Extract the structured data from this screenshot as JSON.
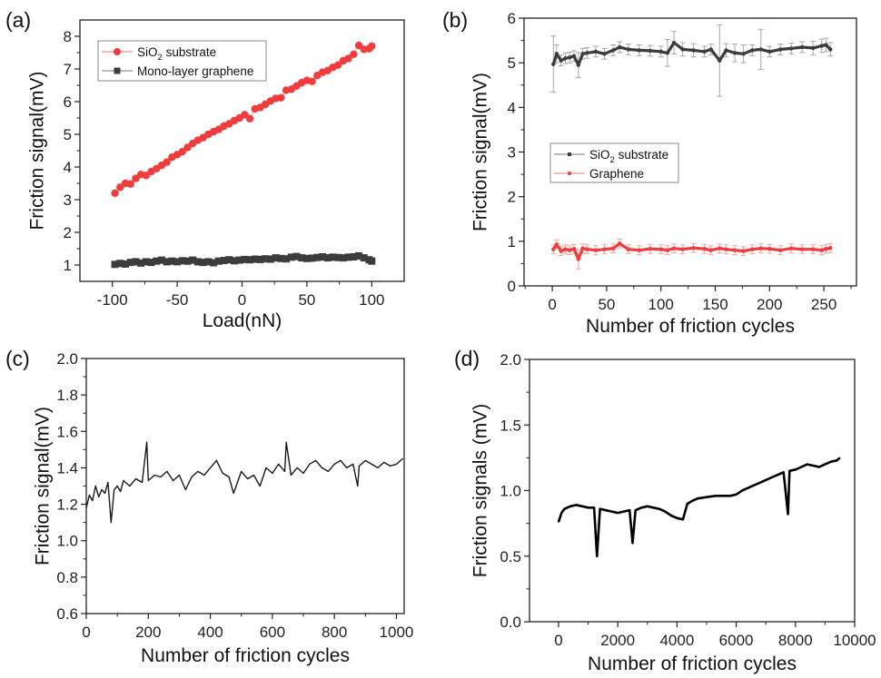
{
  "chart_data": [
    {
      "id": "a",
      "type": "scatter",
      "panel_label": "(a)",
      "title": "",
      "xlabel": "Load(nN)",
      "ylabel": "Friction signal(mV)",
      "xlim": [
        -125,
        125
      ],
      "ylim": [
        0.5,
        8.5
      ],
      "xticks": [
        -100,
        -50,
        0,
        50,
        100
      ],
      "xtick_labels": [
        "-100",
        "-50",
        "0",
        "50",
        "100"
      ],
      "yticks": [
        1,
        2,
        3,
        4,
        5,
        6,
        7,
        8
      ],
      "ytick_labels": [
        "1",
        "2",
        "3",
        "4",
        "5",
        "6",
        "7",
        "8"
      ],
      "grid": false,
      "legend": {
        "placement": "top-left",
        "entries": [
          {
            "label": "SiO",
            "sub": "2",
            "label_rest": " substrate",
            "marker": "circle",
            "color": "#f03c3c"
          },
          {
            "label": "Mono-layer graphene",
            "sub": "",
            "label_rest": "",
            "marker": "square",
            "color": "#3c3c3c"
          }
        ]
      },
      "series": [
        {
          "name": "SiO2 substrate",
          "marker": "circle",
          "color": "#f03c3c",
          "x": [
            -98,
            -94,
            -90,
            -86,
            -82,
            -78,
            -74,
            -70,
            -66,
            -62,
            -58,
            -54,
            -50,
            -46,
            -42,
            -38,
            -34,
            -30,
            -26,
            -22,
            -18,
            -14,
            -10,
            -6,
            -2,
            2,
            6,
            10,
            14,
            18,
            22,
            26,
            30,
            34,
            38,
            42,
            46,
            50,
            54,
            58,
            62,
            66,
            70,
            74,
            78,
            82,
            86,
            90,
            94,
            98,
            100
          ],
          "y": [
            3.2,
            3.38,
            3.5,
            3.48,
            3.65,
            3.77,
            3.74,
            3.86,
            3.95,
            4.05,
            4.15,
            4.3,
            4.38,
            4.47,
            4.6,
            4.72,
            4.82,
            4.9,
            5.0,
            5.08,
            5.15,
            5.25,
            5.32,
            5.42,
            5.5,
            5.6,
            5.48,
            5.78,
            5.82,
            5.92,
            6.02,
            6.1,
            6.12,
            6.35,
            6.38,
            6.48,
            6.58,
            6.65,
            6.62,
            6.8,
            6.9,
            6.95,
            7.05,
            7.12,
            7.25,
            7.32,
            7.45,
            7.72,
            7.6,
            7.62,
            7.7
          ]
        },
        {
          "name": "Mono-layer graphene",
          "marker": "square",
          "color": "#3c3c3c",
          "x": [
            -98,
            -94,
            -90,
            -86,
            -82,
            -78,
            -74,
            -70,
            -66,
            -62,
            -58,
            -54,
            -50,
            -46,
            -42,
            -38,
            -34,
            -30,
            -26,
            -22,
            -18,
            -14,
            -10,
            -6,
            -2,
            2,
            6,
            10,
            14,
            18,
            22,
            26,
            30,
            34,
            38,
            42,
            46,
            50,
            54,
            58,
            62,
            66,
            70,
            74,
            78,
            82,
            86,
            90,
            94,
            98,
            100
          ],
          "y": [
            1.02,
            1.05,
            1.03,
            1.08,
            1.1,
            1.06,
            1.1,
            1.08,
            1.12,
            1.15,
            1.1,
            1.12,
            1.1,
            1.13,
            1.12,
            1.15,
            1.1,
            1.08,
            1.1,
            1.07,
            1.12,
            1.14,
            1.16,
            1.13,
            1.15,
            1.17,
            1.16,
            1.18,
            1.17,
            1.19,
            1.18,
            1.22,
            1.2,
            1.19,
            1.24,
            1.26,
            1.22,
            1.2,
            1.21,
            1.23,
            1.25,
            1.22,
            1.24,
            1.23,
            1.22,
            1.24,
            1.25,
            1.28,
            1.22,
            1.16,
            1.12
          ]
        }
      ]
    },
    {
      "id": "b",
      "type": "line",
      "panel_label": "(b)",
      "title": "",
      "xlabel": "Number of friction cycles",
      "ylabel": "Friction signal(mV)",
      "xlim": [
        -26,
        280
      ],
      "ylim": [
        0,
        6
      ],
      "xticks": [
        0,
        50,
        100,
        150,
        200,
        250
      ],
      "xtick_labels": [
        "0",
        "50",
        "100",
        "150",
        "200",
        "250"
      ],
      "yticks": [
        0,
        1,
        2,
        3,
        4,
        5,
        6
      ],
      "ytick_labels": [
        "0",
        "1",
        "2",
        "3",
        "4",
        "5",
        "6"
      ],
      "grid": false,
      "legend": {
        "placement": "center-left",
        "entries": [
          {
            "label": "SiO",
            "sub": "2",
            "label_rest": " substrate",
            "marker": "square",
            "color": "#3c3c3c"
          },
          {
            "label": "Graphene",
            "sub": "",
            "label_rest": "",
            "marker": "circle",
            "color": "#f03c3c"
          }
        ]
      },
      "series": [
        {
          "name": "SiO2 substrate",
          "color": "#3c3c3c",
          "error_color": "#a8a8a8",
          "x": [
            1,
            4,
            8,
            12,
            16,
            20,
            24,
            28,
            32,
            40,
            48,
            56,
            62,
            70,
            80,
            90,
            100,
            106,
            112,
            120,
            130,
            140,
            146,
            154,
            160,
            168,
            176,
            184,
            192,
            200,
            210,
            220,
            230,
            240,
            248,
            252,
            256
          ],
          "y": [
            4.97,
            5.2,
            5.05,
            5.1,
            5.12,
            5.15,
            4.95,
            5.2,
            5.22,
            5.25,
            5.2,
            5.28,
            5.35,
            5.3,
            5.28,
            5.27,
            5.25,
            5.22,
            5.45,
            5.3,
            5.28,
            5.25,
            5.3,
            5.05,
            5.28,
            5.22,
            5.2,
            5.28,
            5.3,
            5.25,
            5.3,
            5.32,
            5.35,
            5.33,
            5.38,
            5.4,
            5.3
          ],
          "err": [
            0.63,
            0.2,
            0.12,
            0.12,
            0.12,
            0.12,
            0.28,
            0.12,
            0.12,
            0.12,
            0.12,
            0.12,
            0.12,
            0.12,
            0.12,
            0.12,
            0.12,
            0.3,
            0.25,
            0.15,
            0.15,
            0.12,
            0.12,
            0.8,
            0.15,
            0.2,
            0.2,
            0.12,
            0.45,
            0.12,
            0.12,
            0.12,
            0.12,
            0.15,
            0.15,
            0.15,
            0.15
          ]
        },
        {
          "name": "Graphene",
          "color": "#f03c3c",
          "error_color": "#f6a6a6",
          "x": [
            1,
            4,
            8,
            12,
            16,
            20,
            24,
            28,
            32,
            40,
            48,
            56,
            62,
            70,
            80,
            90,
            100,
            106,
            112,
            120,
            130,
            140,
            146,
            154,
            160,
            168,
            176,
            184,
            192,
            200,
            210,
            220,
            230,
            240,
            248,
            252,
            256
          ],
          "y": [
            0.82,
            0.93,
            0.78,
            0.82,
            0.8,
            0.83,
            0.6,
            0.84,
            0.82,
            0.8,
            0.82,
            0.84,
            0.95,
            0.82,
            0.8,
            0.83,
            0.82,
            0.8,
            0.84,
            0.82,
            0.85,
            0.83,
            0.8,
            0.84,
            0.82,
            0.8,
            0.78,
            0.82,
            0.84,
            0.83,
            0.8,
            0.84,
            0.82,
            0.82,
            0.8,
            0.83,
            0.85
          ],
          "err": [
            0.1,
            0.1,
            0.1,
            0.1,
            0.1,
            0.1,
            0.22,
            0.1,
            0.1,
            0.1,
            0.1,
            0.1,
            0.1,
            0.1,
            0.1,
            0.1,
            0.1,
            0.1,
            0.1,
            0.1,
            0.1,
            0.1,
            0.1,
            0.1,
            0.1,
            0.1,
            0.1,
            0.1,
            0.1,
            0.1,
            0.1,
            0.1,
            0.1,
            0.1,
            0.1,
            0.1,
            0.1
          ]
        }
      ]
    },
    {
      "id": "c",
      "type": "line",
      "panel_label": "(c)",
      "title": "",
      "xlabel": "Number of friction cycles",
      "ylabel": "Friction signal(mV)",
      "xlim": [
        0,
        1025
      ],
      "ylim": [
        0.6,
        2.0
      ],
      "xticks": [
        0,
        200,
        400,
        600,
        800,
        1000
      ],
      "xtick_labels": [
        "0",
        "200",
        "400",
        "600",
        "800",
        "1000"
      ],
      "yticks": [
        0.6,
        0.8,
        1.0,
        1.2,
        1.4,
        1.6,
        1.8,
        2.0
      ],
      "ytick_labels": [
        "0.6",
        "0.8",
        "1.0",
        "1.2",
        "1.4",
        "1.6",
        "1.8",
        "2.0"
      ],
      "grid": false,
      "series": [
        {
          "name": "Friction signal",
          "color": "#1a1a1a",
          "x": [
            0,
            10,
            20,
            30,
            40,
            50,
            60,
            70,
            80,
            90,
            100,
            110,
            120,
            140,
            160,
            180,
            195,
            200,
            220,
            240,
            260,
            280,
            300,
            320,
            340,
            360,
            380,
            400,
            420,
            440,
            460,
            475,
            500,
            520,
            540,
            560,
            580,
            600,
            620,
            640,
            645,
            660,
            680,
            700,
            720,
            740,
            760,
            780,
            800,
            820,
            840,
            860,
            875,
            880,
            900,
            920,
            940,
            960,
            980,
            1000,
            1020
          ],
          "y": [
            1.18,
            1.25,
            1.22,
            1.3,
            1.24,
            1.28,
            1.26,
            1.32,
            1.1,
            1.28,
            1.3,
            1.27,
            1.33,
            1.3,
            1.34,
            1.32,
            1.54,
            1.33,
            1.36,
            1.35,
            1.38,
            1.33,
            1.36,
            1.28,
            1.35,
            1.38,
            1.36,
            1.4,
            1.44,
            1.37,
            1.35,
            1.26,
            1.38,
            1.34,
            1.36,
            1.3,
            1.4,
            1.37,
            1.42,
            1.38,
            1.54,
            1.36,
            1.4,
            1.37,
            1.42,
            1.44,
            1.4,
            1.38,
            1.42,
            1.44,
            1.4,
            1.42,
            1.3,
            1.41,
            1.44,
            1.42,
            1.4,
            1.43,
            1.41,
            1.42,
            1.45
          ]
        }
      ]
    },
    {
      "id": "d",
      "type": "line",
      "panel_label": "(d)",
      "title": "",
      "xlabel": "Number of friction cycles",
      "ylabel": "Friction signals (mV)",
      "xlim": [
        -980,
        10000
      ],
      "ylim": [
        0.0,
        2.0
      ],
      "xticks": [
        0,
        2000,
        4000,
        6000,
        8000,
        10000
      ],
      "xtick_labels": [
        "0",
        "2000",
        "4000",
        "6000",
        "8000",
        "10000"
      ],
      "yticks": [
        0.0,
        0.5,
        1.0,
        1.5,
        2.0
      ],
      "ytick_labels": [
        "0.0",
        "0.5",
        "1.0",
        "1.5",
        "2.0"
      ],
      "grid": false,
      "series": [
        {
          "name": "Friction signals",
          "color": "#000000",
          "x": [
            0,
            100,
            200,
            400,
            600,
            800,
            1000,
            1200,
            1300,
            1400,
            1600,
            1800,
            2000,
            2200,
            2400,
            2500,
            2600,
            2800,
            3000,
            3200,
            3400,
            3600,
            3800,
            4000,
            4200,
            4350,
            4500,
            4700,
            5000,
            5300,
            5600,
            5800,
            6000,
            6200,
            6400,
            6600,
            6800,
            7000,
            7200,
            7400,
            7600,
            7750,
            7800,
            8000,
            8200,
            8400,
            8600,
            8800,
            9000,
            9200,
            9400,
            9500
          ],
          "y": [
            0.76,
            0.83,
            0.86,
            0.88,
            0.89,
            0.88,
            0.87,
            0.87,
            0.5,
            0.86,
            0.85,
            0.84,
            0.83,
            0.84,
            0.85,
            0.6,
            0.85,
            0.87,
            0.88,
            0.87,
            0.86,
            0.84,
            0.81,
            0.79,
            0.78,
            0.9,
            0.92,
            0.94,
            0.95,
            0.96,
            0.96,
            0.96,
            0.97,
            1.0,
            1.02,
            1.04,
            1.06,
            1.08,
            1.1,
            1.12,
            1.14,
            0.82,
            1.15,
            1.16,
            1.18,
            1.2,
            1.19,
            1.18,
            1.2,
            1.22,
            1.23,
            1.25
          ]
        }
      ]
    }
  ]
}
